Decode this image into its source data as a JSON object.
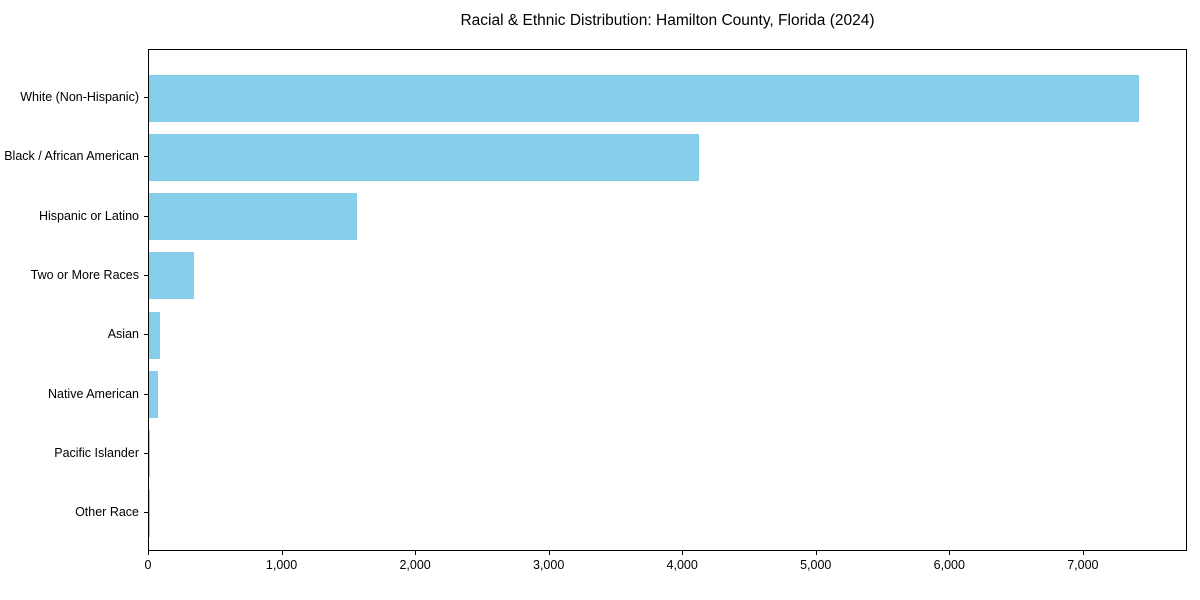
{
  "chart_data": {
    "type": "bar",
    "orientation": "horizontal",
    "title": "Racial & Ethnic Distribution: Hamilton County, Florida (2024)",
    "categories": [
      "White (Non-Hispanic)",
      "Black / African American",
      "Hispanic or Latino",
      "Two or More Races",
      "Asian",
      "Native American",
      "Pacific Islander",
      "Other Race"
    ],
    "values": [
      7410,
      4120,
      1560,
      340,
      85,
      65,
      5,
      3
    ],
    "xlabel": "",
    "ylabel": "",
    "xlim": [
      0,
      7780
    ],
    "x_ticks": [
      0,
      1000,
      2000,
      3000,
      4000,
      5000,
      6000,
      7000
    ],
    "x_tick_labels": [
      "0",
      "1,000",
      "2,000",
      "3,000",
      "4,000",
      "5,000",
      "6,000",
      "7,000"
    ],
    "bar_color": "#87CEEB",
    "spine_color": "#000000",
    "text_color": "#000000",
    "background_color": "#ffffff",
    "grid": false,
    "legend": null
  }
}
